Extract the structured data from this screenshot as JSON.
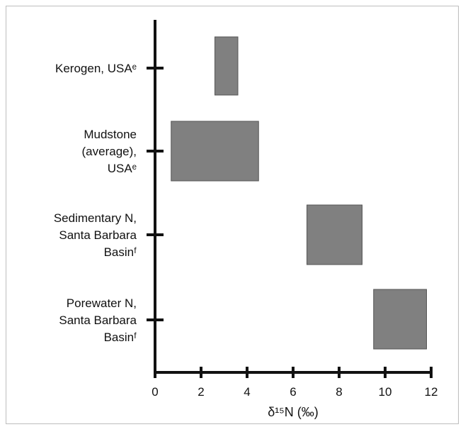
{
  "chart_data": {
    "type": "bar",
    "orientation": "horizontal-range",
    "categories": [
      [
        "Kerogen, USAᵉ"
      ],
      [
        "Mudstone",
        "(average),",
        "USAᵉ"
      ],
      [
        "Sedimentary N,",
        "Santa Barbara",
        "Basinᶠ"
      ],
      [
        "Porewater N,",
        "Santa Barbara",
        "Basinᶠ"
      ]
    ],
    "ranges": [
      [
        2.6,
        3.6
      ],
      [
        0.7,
        4.5
      ],
      [
        6.6,
        9.0
      ],
      [
        9.5,
        11.8
      ]
    ],
    "xlabel": "δ¹⁵N (‰)",
    "xlim": [
      0,
      12
    ],
    "xticks": [
      "0",
      "2",
      "4",
      "6",
      "8",
      "10",
      "12"
    ],
    "bar_color": "#808080",
    "grid": false
  }
}
